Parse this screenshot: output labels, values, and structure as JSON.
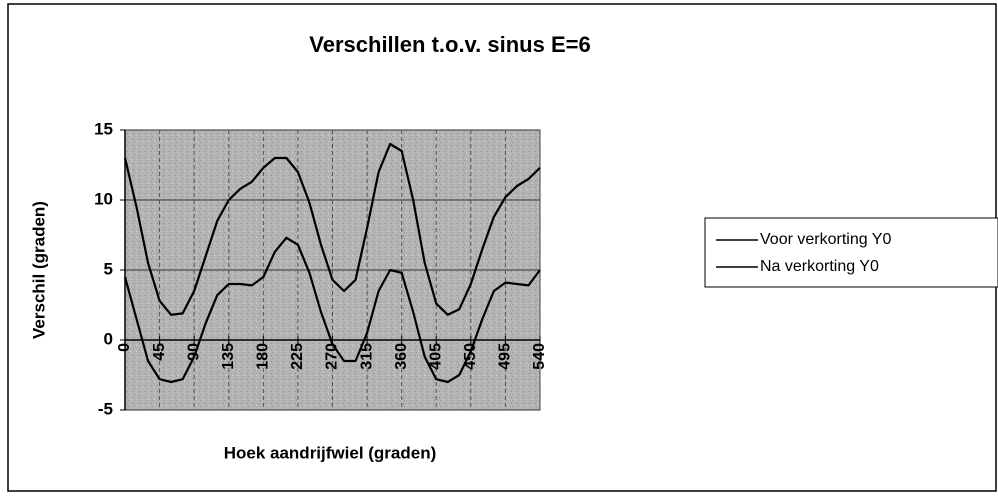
{
  "chart_data": {
    "type": "line",
    "title": "Verschillen t.o.v. sinus E=6",
    "x_label": "Hoek aandrijfwiel (graden)",
    "y_label": "Verschil (graden)",
    "x": [
      0,
      15,
      30,
      45,
      60,
      75,
      90,
      105,
      120,
      135,
      150,
      165,
      180,
      195,
      210,
      225,
      240,
      255,
      270,
      285,
      300,
      315,
      330,
      345,
      360,
      375,
      390,
      405,
      420,
      435,
      450,
      465,
      480,
      495,
      510,
      525,
      540
    ],
    "series": [
      {
        "name": "Voor verkorting Y0",
        "color": "#000000",
        "values": [
          13,
          9.5,
          5.5,
          2.8,
          1.8,
          1.9,
          3.5,
          6,
          8.5,
          10,
          10.8,
          11.3,
          12.3,
          13,
          13,
          12,
          9.8,
          6.8,
          4.3,
          3.5,
          4.3,
          8,
          12,
          14,
          13.5,
          10,
          5.5,
          2.6,
          1.8,
          2.2,
          4,
          6.5,
          8.8,
          10.2,
          11,
          11.5,
          12.3
        ]
      },
      {
        "name": "Na verkorting Y0",
        "color": "#000000",
        "values": [
          4.5,
          1.5,
          -1.5,
          -2.8,
          -3,
          -2.8,
          -1.2,
          1.2,
          3.2,
          4,
          4,
          3.9,
          4.5,
          6.3,
          7.3,
          6.8,
          4.8,
          2,
          -0.3,
          -1.5,
          -1.5,
          0.5,
          3.5,
          5,
          4.8,
          2,
          -1.2,
          -2.8,
          -3,
          -2.5,
          -0.8,
          1.5,
          3.5,
          4.1,
          4,
          3.9,
          5
        ]
      }
    ],
    "xlim": [
      0,
      540
    ],
    "xticks": [
      0,
      45,
      90,
      135,
      180,
      225,
      270,
      315,
      360,
      405,
      450,
      495,
      540
    ],
    "ylim": [
      -5,
      15
    ],
    "yticks": [
      -5,
      0,
      5,
      10,
      15
    ],
    "grid": true,
    "legend": "right"
  }
}
